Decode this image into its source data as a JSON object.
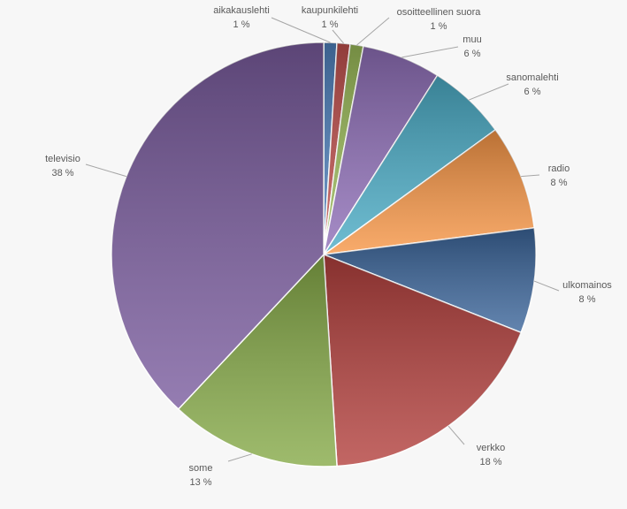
{
  "chart_data": {
    "type": "pie",
    "categories": [
      "aikakauslehti",
      "kaupunkilehti",
      "osoitteellinen suora",
      "muu",
      "sanomalehti",
      "radio",
      "ulkomainos",
      "verkko",
      "some",
      "televisio"
    ],
    "values": [
      1,
      1,
      1,
      6,
      6,
      8,
      8,
      18,
      13,
      38
    ],
    "value_labels": [
      "1 %",
      "1 %",
      "1 %",
      "6 %",
      "6 %",
      "8 %",
      "8 %",
      "18 %",
      "13 %",
      "38 %"
    ],
    "colors": [
      "#4f81bd",
      "#c0504d",
      "#9bbb59",
      "#8f6fb8",
      "#4bacc6",
      "#f79646",
      "#3b659a",
      "#b3403d",
      "#86aa48",
      "#7a5c9e"
    ]
  }
}
